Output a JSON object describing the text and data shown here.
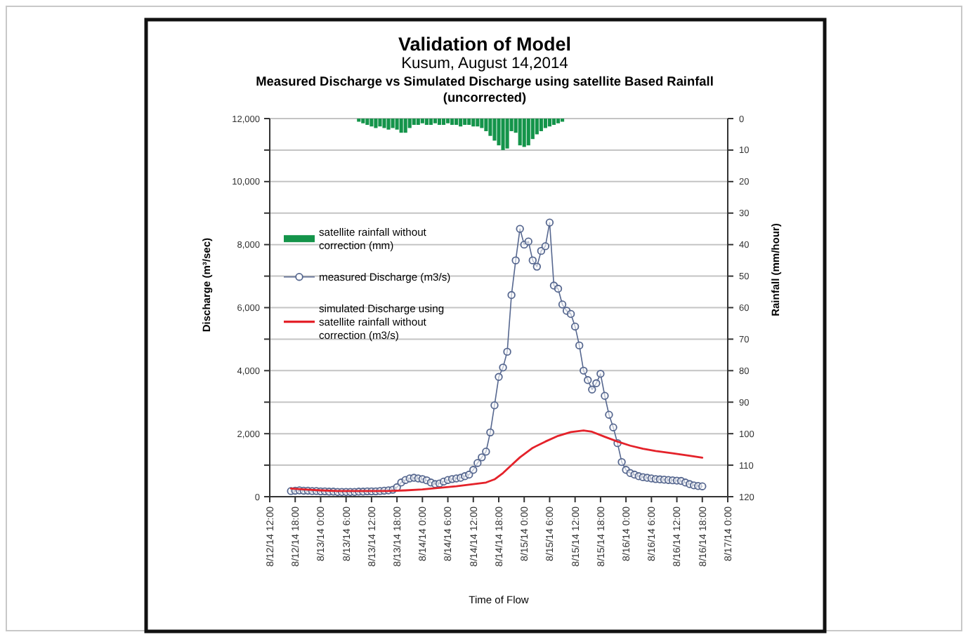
{
  "chart_data": {
    "type": "line",
    "title": "Validation of Model",
    "subtitle": "Kusum, August 14,2014",
    "annotations": [
      "Measured Discharge vs Simulated Discharge using satellite Based Rainfall (uncorrected)"
    ],
    "xlabel": "Time of Flow",
    "ylabel": "Discharge (m³/sec)",
    "y2label": "Rainfall (mm/hour)",
    "xlim": [
      "2014-08-12T12:00",
      "2014-08-17T00:00"
    ],
    "xticks": [
      {
        "value": "2014-08-12T12:00",
        "label": "8/12/14 12:00"
      },
      {
        "value": "2014-08-12T18:00",
        "label": "8/12/14 18:00"
      },
      {
        "value": "2014-08-13T00:00",
        "label": "8/13/14 0:00"
      },
      {
        "value": "2014-08-13T06:00",
        "label": "8/13/14 6:00"
      },
      {
        "value": "2014-08-13T12:00",
        "label": "8/13/14 12:00"
      },
      {
        "value": "2014-08-13T18:00",
        "label": "8/13/14 18:00"
      },
      {
        "value": "2014-08-14T00:00",
        "label": "8/14/14 0:00"
      },
      {
        "value": "2014-08-14T06:00",
        "label": "8/14/14 6:00"
      },
      {
        "value": "2014-08-14T12:00",
        "label": "8/14/14 12:00"
      },
      {
        "value": "2014-08-14T18:00",
        "label": "8/14/14 18:00"
      },
      {
        "value": "2014-08-15T00:00",
        "label": "8/15/14 0:00"
      },
      {
        "value": "2014-08-15T06:00",
        "label": "8/15/14 6:00"
      },
      {
        "value": "2014-08-15T12:00",
        "label": "8/15/14 12:00"
      },
      {
        "value": "2014-08-15T18:00",
        "label": "8/15/14 18:00"
      },
      {
        "value": "2014-08-16T00:00",
        "label": "8/16/14 0:00"
      },
      {
        "value": "2014-08-16T06:00",
        "label": "8/16/14 6:00"
      },
      {
        "value": "2014-08-16T12:00",
        "label": "8/16/14 12:00"
      },
      {
        "value": "2014-08-16T18:00",
        "label": "8/16/14 18:00"
      },
      {
        "value": "2014-08-17T00:00",
        "label": "8/17/14 0:00"
      }
    ],
    "ylim": [
      0,
      12000
    ],
    "yticks": [
      0,
      {
        "value": 1000,
        "label": null
      },
      {
        "value": 2000,
        "label": "2,000"
      },
      {
        "value": 3000,
        "label": null
      },
      {
        "value": 4000,
        "label": "4,000"
      },
      {
        "value": 5000,
        "label": null
      },
      {
        "value": 6000,
        "label": "6,000"
      },
      {
        "value": 7000,
        "label": null
      },
      {
        "value": 8000,
        "label": "8,000"
      },
      {
        "value": 9000,
        "label": null
      },
      {
        "value": 10000,
        "label": "10,000"
      },
      {
        "value": 11000,
        "label": null
      },
      {
        "value": 12000,
        "label": "12,000"
      }
    ],
    "y2lim": [
      120,
      0
    ],
    "y2ticks": [
      0,
      10,
      20,
      30,
      40,
      50,
      60,
      70,
      80,
      90,
      100,
      110,
      120
    ],
    "grid": "y",
    "legend": "left",
    "series": [
      {
        "name": "satellite rainfall without correction (mm)",
        "type": "bar",
        "axis": "y2",
        "color": "#14944a",
        "x": [
          "2014-08-13T09:00",
          "2014-08-13T10:00",
          "2014-08-13T11:00",
          "2014-08-13T12:00",
          "2014-08-13T13:00",
          "2014-08-13T14:00",
          "2014-08-13T15:00",
          "2014-08-13T16:00",
          "2014-08-13T17:00",
          "2014-08-13T18:00",
          "2014-08-13T19:00",
          "2014-08-13T20:00",
          "2014-08-13T21:00",
          "2014-08-13T22:00",
          "2014-08-13T23:00",
          "2014-08-14T00:00",
          "2014-08-14T01:00",
          "2014-08-14T02:00",
          "2014-08-14T03:00",
          "2014-08-14T04:00",
          "2014-08-14T05:00",
          "2014-08-14T06:00",
          "2014-08-14T07:00",
          "2014-08-14T08:00",
          "2014-08-14T09:00",
          "2014-08-14T10:00",
          "2014-08-14T11:00",
          "2014-08-14T12:00",
          "2014-08-14T13:00",
          "2014-08-14T14:00",
          "2014-08-14T15:00",
          "2014-08-14T16:00",
          "2014-08-14T17:00",
          "2014-08-14T18:00",
          "2014-08-14T19:00",
          "2014-08-14T20:00",
          "2014-08-14T21:00",
          "2014-08-14T22:00",
          "2014-08-14T23:00",
          "2014-08-15T00:00",
          "2014-08-15T01:00",
          "2014-08-15T02:00",
          "2014-08-15T03:00",
          "2014-08-15T04:00",
          "2014-08-15T05:00",
          "2014-08-15T06:00",
          "2014-08-15T07:00",
          "2014-08-15T08:00",
          "2014-08-15T09:00"
        ],
        "values": [
          1.0,
          1.5,
          2.0,
          2.5,
          3.0,
          2.5,
          3.0,
          3.5,
          3.0,
          3.5,
          4.5,
          4.5,
          3.0,
          2.0,
          2.0,
          1.5,
          2.0,
          2.0,
          1.5,
          2.0,
          2.0,
          1.5,
          2.0,
          2.0,
          2.5,
          2.0,
          2.0,
          2.5,
          2.5,
          3.0,
          4.0,
          5.5,
          7.0,
          8.5,
          10.0,
          9.5,
          4.0,
          4.5,
          8.5,
          9.0,
          8.5,
          6.5,
          5.0,
          4.0,
          3.0,
          2.5,
          2.0,
          1.5,
          1.0
        ]
      },
      {
        "name": "measured Discharge (m3/s)",
        "color": "#56678f",
        "marker": "circle",
        "x": [
          "2014-08-12T17:00",
          "2014-08-12T18:00",
          "2014-08-12T19:00",
          "2014-08-12T20:00",
          "2014-08-12T21:00",
          "2014-08-12T22:00",
          "2014-08-12T23:00",
          "2014-08-13T00:00",
          "2014-08-13T01:00",
          "2014-08-13T02:00",
          "2014-08-13T03:00",
          "2014-08-13T04:00",
          "2014-08-13T05:00",
          "2014-08-13T06:00",
          "2014-08-13T07:00",
          "2014-08-13T08:00",
          "2014-08-13T09:00",
          "2014-08-13T10:00",
          "2014-08-13T11:00",
          "2014-08-13T12:00",
          "2014-08-13T13:00",
          "2014-08-13T14:00",
          "2014-08-13T15:00",
          "2014-08-13T16:00",
          "2014-08-13T17:00",
          "2014-08-13T18:00",
          "2014-08-13T19:00",
          "2014-08-13T20:00",
          "2014-08-13T21:00",
          "2014-08-13T22:00",
          "2014-08-13T23:00",
          "2014-08-14T00:00",
          "2014-08-14T01:00",
          "2014-08-14T02:00",
          "2014-08-14T03:00",
          "2014-08-14T04:00",
          "2014-08-14T05:00",
          "2014-08-14T06:00",
          "2014-08-14T07:00",
          "2014-08-14T08:00",
          "2014-08-14T09:00",
          "2014-08-14T10:00",
          "2014-08-14T11:00",
          "2014-08-14T12:00",
          "2014-08-14T13:00",
          "2014-08-14T14:00",
          "2014-08-14T15:00",
          "2014-08-14T16:00",
          "2014-08-14T17:00",
          "2014-08-14T18:00",
          "2014-08-14T19:00",
          "2014-08-14T20:00",
          "2014-08-14T21:00",
          "2014-08-14T22:00",
          "2014-08-14T23:00",
          "2014-08-15T00:00",
          "2014-08-15T01:00",
          "2014-08-15T02:00",
          "2014-08-15T03:00",
          "2014-08-15T04:00",
          "2014-08-15T05:00",
          "2014-08-15T06:00",
          "2014-08-15T07:00",
          "2014-08-15T08:00",
          "2014-08-15T09:00",
          "2014-08-15T10:00",
          "2014-08-15T11:00",
          "2014-08-15T12:00",
          "2014-08-15T13:00",
          "2014-08-15T14:00",
          "2014-08-15T15:00",
          "2014-08-15T16:00",
          "2014-08-15T17:00",
          "2014-08-15T18:00",
          "2014-08-15T19:00",
          "2014-08-15T20:00",
          "2014-08-15T21:00",
          "2014-08-15T22:00",
          "2014-08-15T23:00",
          "2014-08-16T00:00",
          "2014-08-16T01:00",
          "2014-08-16T02:00",
          "2014-08-16T03:00",
          "2014-08-16T04:00",
          "2014-08-16T05:00",
          "2014-08-16T06:00",
          "2014-08-16T07:00",
          "2014-08-16T08:00",
          "2014-08-16T09:00",
          "2014-08-16T10:00",
          "2014-08-16T11:00",
          "2014-08-16T12:00",
          "2014-08-16T13:00",
          "2014-08-16T14:00",
          "2014-08-16T15:00",
          "2014-08-16T16:00",
          "2014-08-16T17:00",
          "2014-08-16T18:00"
        ],
        "values": [
          180,
          190,
          200,
          190,
          190,
          180,
          180,
          170,
          170,
          160,
          160,
          150,
          150,
          150,
          150,
          150,
          160,
          160,
          170,
          170,
          170,
          180,
          190,
          200,
          220,
          300,
          450,
          530,
          580,
          600,
          580,
          560,
          520,
          450,
          400,
          420,
          480,
          530,
          560,
          580,
          600,
          650,
          700,
          850,
          1070,
          1250,
          1430,
          2040,
          2900,
          3800,
          4100,
          4600,
          6400,
          7500,
          8500,
          8000,
          8100,
          7500,
          7300,
          7800,
          7950,
          8700,
          6700,
          6600,
          6100,
          5900,
          5800,
          5400,
          4800,
          4000,
          3700,
          3400,
          3600,
          3900,
          3200,
          2600,
          2200,
          1700,
          1100,
          850,
          750,
          700,
          650,
          620,
          600,
          580,
          560,
          550,
          540,
          530,
          520,
          510,
          500,
          450,
          400,
          360,
          340,
          330
        ]
      },
      {
        "name": "simulated Discharge using satellite rainfall without correction (m3/s)",
        "color": "#e4222a",
        "marker": "none",
        "x": [
          "2014-08-12T17:00",
          "2014-08-12T20:00",
          "2014-08-13T00:00",
          "2014-08-13T04:00",
          "2014-08-13T08:00",
          "2014-08-13T12:00",
          "2014-08-13T16:00",
          "2014-08-13T20:00",
          "2014-08-14T00:00",
          "2014-08-14T04:00",
          "2014-08-14T08:00",
          "2014-08-14T12:00",
          "2014-08-14T15:00",
          "2014-08-14T17:00",
          "2014-08-14T19:00",
          "2014-08-14T21:00",
          "2014-08-14T23:00",
          "2014-08-15T02:00",
          "2014-08-15T05:00",
          "2014-08-15T08:00",
          "2014-08-15T11:00",
          "2014-08-15T14:00",
          "2014-08-15T16:00",
          "2014-08-15T19:00",
          "2014-08-15T22:00",
          "2014-08-16T01:00",
          "2014-08-16T04:00",
          "2014-08-16T07:00",
          "2014-08-16T11:00",
          "2014-08-16T15:00",
          "2014-08-16T18:00"
        ],
        "values": [
          260,
          230,
          200,
          180,
          180,
          180,
          180,
          200,
          230,
          280,
          330,
          400,
          450,
          550,
          750,
          1000,
          1250,
          1550,
          1750,
          1930,
          2050,
          2100,
          2060,
          1900,
          1750,
          1620,
          1520,
          1450,
          1380,
          1300,
          1240
        ]
      }
    ]
  }
}
